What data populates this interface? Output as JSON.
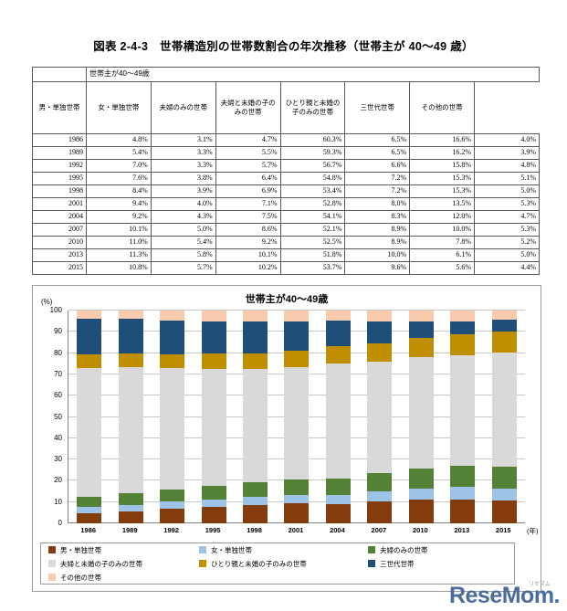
{
  "page": {
    "title": "図表 2-4-3　世帯構造別の世帯数割合の年次推移（世帯主が 40～49 歳）"
  },
  "table": {
    "group_header": "世帯主が40～49歳",
    "columns": [
      "男・単独世帯",
      "女・単独世帯",
      "夫婦のみの世帯",
      "夫婦と未婚の子のみの世帯",
      "ひとり親と未婚の子のみの世帯",
      "三世代世帯",
      "その他の世帯"
    ],
    "rows": [
      {
        "year": "1986",
        "values": [
          "4.8%",
          "3.1%",
          "4.7%",
          "60.3%",
          "6.5%",
          "16.6%",
          "4.0%"
        ]
      },
      {
        "year": "1989",
        "values": [
          "5.4%",
          "3.3%",
          "5.5%",
          "59.3%",
          "6.5%",
          "16.2%",
          "3.9%"
        ]
      },
      {
        "year": "1992",
        "values": [
          "7.0%",
          "3.3%",
          "5.7%",
          "56.7%",
          "6.6%",
          "15.8%",
          "4.8%"
        ]
      },
      {
        "year": "1995",
        "values": [
          "7.6%",
          "3.8%",
          "6.4%",
          "54.8%",
          "7.2%",
          "15.3%",
          "5.1%"
        ]
      },
      {
        "year": "1998",
        "values": [
          "8.4%",
          "3.9%",
          "6.9%",
          "53.4%",
          "7.2%",
          "15.3%",
          "5.0%"
        ]
      },
      {
        "year": "2001",
        "values": [
          "9.4%",
          "4.0%",
          "7.1%",
          "52.8%",
          "8.0%",
          "13.5%",
          "5.3%"
        ]
      },
      {
        "year": "2004",
        "values": [
          "9.2%",
          "4.3%",
          "7.5%",
          "54.1%",
          "8.3%",
          "12.0%",
          "4.7%"
        ]
      },
      {
        "year": "2007",
        "values": [
          "10.1%",
          "5.0%",
          "8.6%",
          "52.1%",
          "8.9%",
          "10.0%",
          "5.3%"
        ]
      },
      {
        "year": "2010",
        "values": [
          "11.0%",
          "5.4%",
          "9.2%",
          "52.5%",
          "8.9%",
          "7.8%",
          "5.2%"
        ]
      },
      {
        "year": "2013",
        "values": [
          "11.3%",
          "5.8%",
          "10.1%",
          "51.8%",
          "10.0%",
          "6.1%",
          "5.0%"
        ]
      },
      {
        "year": "2015",
        "values": [
          "10.8%",
          "5.7%",
          "10.2%",
          "53.7%",
          "9.6%",
          "5.6%",
          "4.4%"
        ]
      }
    ]
  },
  "chart_data": {
    "type": "bar",
    "stacked": true,
    "title": "世帯主が40～49歳",
    "ylabel": "(%)",
    "xlabel": "(年)",
    "ylim": [
      0,
      100
    ],
    "ytick_interval": 10,
    "grid": true,
    "legend_position": "bottom",
    "categories": [
      "1986",
      "1989",
      "1992",
      "1995",
      "1998",
      "2001",
      "2004",
      "2007",
      "2010",
      "2013",
      "2015"
    ],
    "series": [
      {
        "name": "男・単独世帯",
        "color": "#843C0C",
        "values": [
          4.8,
          5.4,
          7.0,
          7.6,
          8.4,
          9.4,
          9.2,
          10.1,
          11.0,
          11.3,
          10.8
        ]
      },
      {
        "name": "女・単独世帯",
        "color": "#9DC3E6",
        "values": [
          3.1,
          3.3,
          3.3,
          3.8,
          3.9,
          4.0,
          4.3,
          5.0,
          5.4,
          5.8,
          5.7
        ]
      },
      {
        "name": "夫婦のみの世帯",
        "color": "#538135",
        "values": [
          4.7,
          5.5,
          5.7,
          6.4,
          6.9,
          7.1,
          7.5,
          8.6,
          9.2,
          10.1,
          10.2
        ]
      },
      {
        "name": "夫婦と未婚の子のみの世帯",
        "color": "#D9D9D9",
        "values": [
          60.3,
          59.3,
          56.7,
          54.8,
          53.4,
          52.8,
          54.1,
          52.1,
          52.5,
          51.8,
          53.7
        ]
      },
      {
        "name": "ひとり親と未婚の子のみの世帯",
        "color": "#BF8F00",
        "values": [
          6.5,
          6.5,
          6.6,
          7.2,
          7.2,
          8.0,
          8.3,
          8.9,
          8.9,
          10.0,
          9.6
        ]
      },
      {
        "name": "三世代世帯",
        "color": "#1F4E79",
        "values": [
          16.6,
          16.2,
          15.8,
          15.3,
          15.3,
          13.5,
          12.0,
          10.0,
          7.8,
          6.1,
          5.6
        ]
      },
      {
        "name": "その他の世帯",
        "color": "#F8CBAD",
        "values": [
          4.0,
          3.9,
          4.8,
          5.1,
          5.0,
          5.3,
          4.7,
          5.3,
          5.2,
          5.0,
          4.4
        ]
      }
    ]
  },
  "watermark": {
    "text": "ReseMom.",
    "sub": "リセマム"
  }
}
